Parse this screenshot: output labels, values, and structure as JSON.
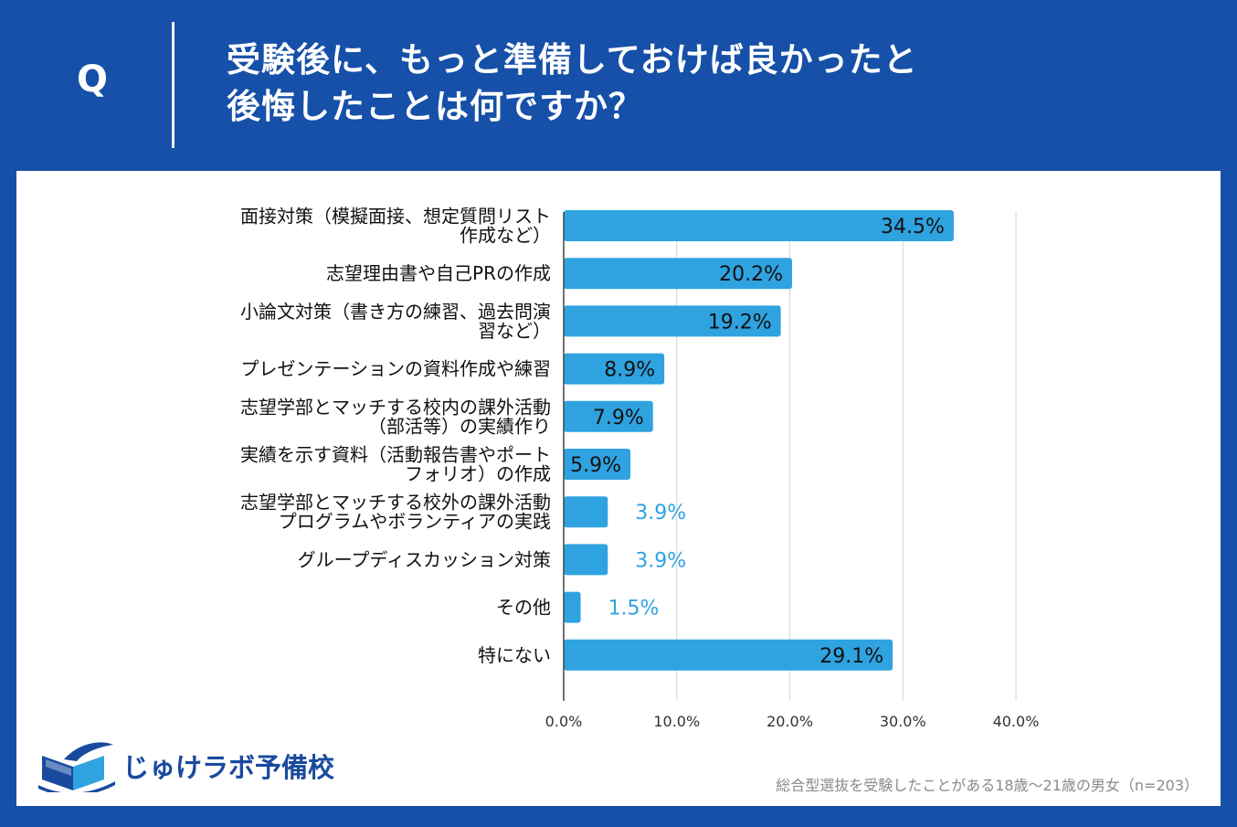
{
  "header": {
    "q_label": "Q",
    "question_line1": "受験後に、もっと準備しておけば良かったと",
    "question_line2": "後悔したことは何ですか？"
  },
  "chart_data": {
    "type": "bar",
    "orientation": "horizontal",
    "categories": [
      [
        "面接対策（模擬面接、想定質問リスト",
        "作成など）"
      ],
      [
        "志望理由書や自己PRの作成"
      ],
      [
        "小論文対策（書き方の練習、過去問演",
        "習など）"
      ],
      [
        "プレゼンテーションの資料作成や練習"
      ],
      [
        "志望学部とマッチする校内の課外活動",
        "（部活等）の実績作り"
      ],
      [
        "実績を示す資料（活動報告書やポート",
        "フォリオ）の作成"
      ],
      [
        "志望学部とマッチする校外の課外活動",
        "プログラムやボランティアの実践"
      ],
      [
        "グループディスカッション対策"
      ],
      [
        "その他"
      ],
      [
        "特にない"
      ]
    ],
    "values": [
      34.5,
      20.2,
      19.2,
      8.9,
      7.9,
      5.9,
      3.9,
      3.9,
      1.5,
      29.1
    ],
    "value_labels": [
      "34.5%",
      "20.2%",
      "19.2%",
      "8.9%",
      "7.9%",
      "5.9%",
      "3.9%",
      "3.9%",
      "1.5%",
      "29.1%"
    ],
    "xlim": [
      0,
      40
    ],
    "ticks": [
      0,
      10,
      20,
      30,
      40
    ],
    "tick_labels": [
      "0.0%",
      "10.0%",
      "20.0%",
      "30.0%",
      "40.0%"
    ],
    "grid": true,
    "bar_color": "#2fa3e0",
    "xlabel": "",
    "ylabel": ""
  },
  "logo": {
    "text": "じゅけラボ予備校"
  },
  "footnote": "総合型選抜を受験したことがある18歳～21歳の男女（n=203）"
}
